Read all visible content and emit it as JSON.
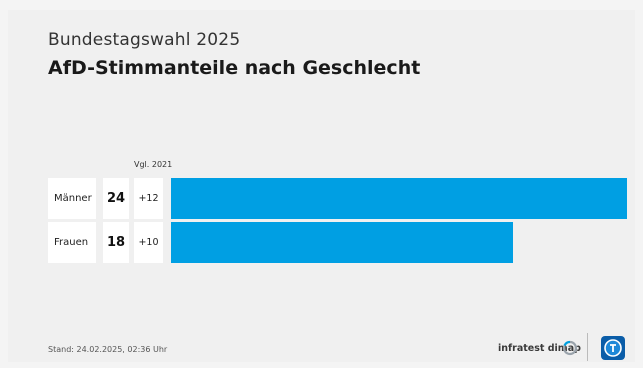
{
  "header": {
    "supertitle": "Bundestagswahl 2025",
    "title": "AfD-Stimmanteile nach Geschlecht"
  },
  "comparison_header": "Vgl. 2021",
  "chart_data": {
    "type": "bar",
    "title": "AfD-Stimmanteile nach Geschlecht",
    "categories": [
      "Männer",
      "Frauen"
    ],
    "values": [
      24,
      18
    ],
    "changes": [
      "+12",
      "+10"
    ],
    "comparison_label": "Vgl. 2021",
    "xlim": [
      0,
      24
    ],
    "color": "#009fe3"
  },
  "footer": {
    "stand": "Stand:  24.02.2025, 02:36 Uhr",
    "brand": "infratest dimap"
  },
  "colors": {
    "bar": "#009fe3",
    "logo": "#0b5da8"
  },
  "icons": {
    "brand": "infratest-dimap-icon",
    "logo": "tagesschau-logo-icon"
  }
}
